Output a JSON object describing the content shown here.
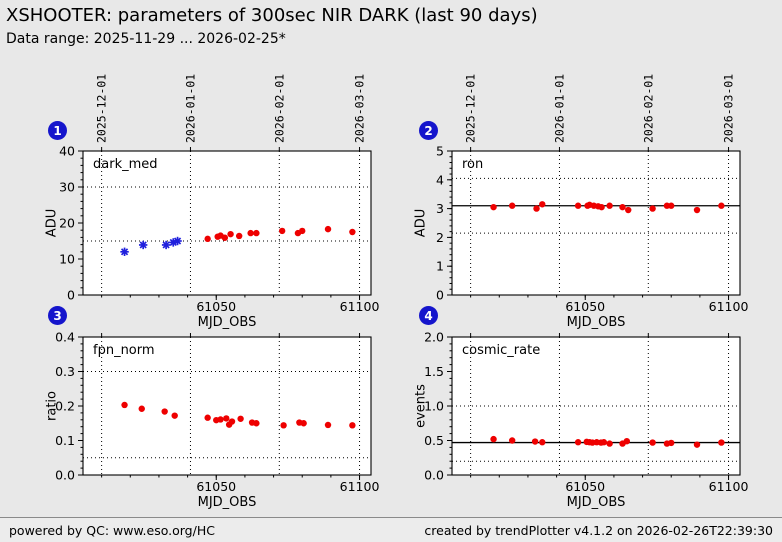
{
  "header": {
    "title": "XSHOOTER: parameters of 300sec NIR DARK (last 90 days)",
    "subtitle": "Data range: 2025-11-29 ... 2026-02-25*"
  },
  "footer": {
    "powered_by": "powered by QC: www.eso.org/HC",
    "created_by": "created by trendPlotter v4.1.2 on 2026-02-26T22:39:30"
  },
  "colors": {
    "page_bg": "#e8e8e8",
    "plot_bg": "#ffffff",
    "axis": "#000000",
    "red_marker": "#ee0000",
    "blue_marker": "#2020dd",
    "badge_bg": "#1515cc",
    "badge_fg": "#ffffff"
  },
  "x_axis": {
    "label": "MJD_OBS",
    "lim": [
      61003.5,
      61104
    ],
    "major_ticks": [
      61050,
      61100
    ],
    "major_labels": [
      "61050",
      "61100"
    ],
    "minor_step": 10,
    "date_ticks": [
      {
        "mjd": 61010,
        "label": "2025-12-01"
      },
      {
        "mjd": 61041,
        "label": "2026-01-01"
      },
      {
        "mjd": 61072,
        "label": "2026-02-01"
      },
      {
        "mjd": 61100,
        "label": "2026-03-01"
      }
    ]
  },
  "chart_data": [
    {
      "type": "scatter",
      "badge": "1",
      "label": "dark_med",
      "xlabel": "MJD_OBS",
      "ylabel": "ADU",
      "ylim": [
        0,
        40
      ],
      "ytick_vals": [
        0,
        10,
        20,
        30,
        40
      ],
      "ytick_labels": [
        "0",
        "10",
        "20",
        "30",
        "40"
      ],
      "yminor_step": 2,
      "thresholds": [
        15,
        30
      ],
      "mean_line": null,
      "show_date_labels": true,
      "series": [
        {
          "name": "historic",
          "marker": "asterisk",
          "color_key": "blue_marker",
          "x": [
            61018,
            61024.5,
            61032.5,
            61035,
            61036.5
          ],
          "y": [
            12.0,
            13.9,
            13.9,
            14.6,
            15.0
          ]
        },
        {
          "name": "current",
          "marker": "circle",
          "color_key": "red_marker",
          "x": [
            61047,
            61050.5,
            61051.5,
            61053,
            61055,
            61058,
            61062,
            61064,
            61073,
            61078.5,
            61080,
            61089,
            61097.5
          ],
          "y": [
            15.6,
            16.2,
            16.5,
            15.9,
            16.9,
            16.4,
            17.2,
            17.2,
            17.8,
            17.2,
            17.8,
            18.3,
            17.5
          ]
        }
      ]
    },
    {
      "type": "scatter",
      "badge": "2",
      "label": "ron",
      "xlabel": "MJD_OBS",
      "ylabel": "ADU",
      "ylim": [
        0,
        5
      ],
      "ytick_vals": [
        0,
        1,
        2,
        3,
        4,
        5
      ],
      "ytick_labels": [
        "0",
        "1",
        "2",
        "3",
        "4",
        "5"
      ],
      "yminor_step": 0.2,
      "thresholds": [
        2.15,
        4.05
      ],
      "mean_line": 3.1,
      "show_date_labels": true,
      "series": [
        {
          "name": "current",
          "marker": "circle",
          "color_key": "red_marker",
          "x": [
            61018,
            61024.5,
            61033,
            61035,
            61047.5,
            61050.8,
            61051.5,
            61053,
            61054.5,
            61055.7,
            61058.5,
            61063,
            61065,
            61073.5,
            61078.5,
            61080,
            61089,
            61097.5
          ],
          "y": [
            3.05,
            3.1,
            3.0,
            3.15,
            3.1,
            3.1,
            3.13,
            3.1,
            3.08,
            3.05,
            3.1,
            3.05,
            2.95,
            3.0,
            3.1,
            3.1,
            2.95,
            3.1
          ]
        }
      ]
    },
    {
      "type": "scatter",
      "badge": "3",
      "label": "fpn_norm",
      "xlabel": "MJD_OBS",
      "ylabel": "ratio",
      "ylim": [
        0,
        0.4
      ],
      "ytick_vals": [
        0,
        0.1,
        0.2,
        0.3,
        0.4
      ],
      "ytick_labels": [
        "0.0",
        "0.1",
        "0.2",
        "0.3",
        "0.4"
      ],
      "yminor_step": 0.02,
      "thresholds": [
        0.05,
        0.3
      ],
      "mean_line": null,
      "show_date_labels": false,
      "series": [
        {
          "name": "current",
          "marker": "circle",
          "color_key": "red_marker",
          "x": [
            61018,
            61024,
            61032,
            61035.5,
            61047,
            61050,
            61051.5,
            61053.5,
            61054.5,
            61055.5,
            61058.5,
            61062.5,
            61064,
            61073.5,
            61079,
            61080.5,
            61089,
            61097.5
          ],
          "y": [
            0.203,
            0.192,
            0.184,
            0.172,
            0.166,
            0.159,
            0.161,
            0.164,
            0.146,
            0.155,
            0.163,
            0.152,
            0.15,
            0.144,
            0.152,
            0.15,
            0.145,
            0.144
          ]
        }
      ]
    },
    {
      "type": "scatter",
      "badge": "4",
      "label": "cosmic_rate",
      "xlabel": "MJD_OBS",
      "ylabel": "events",
      "ylim": [
        0,
        2
      ],
      "ytick_vals": [
        0,
        0.5,
        1.0,
        1.5,
        2.0
      ],
      "ytick_labels": [
        "0.0",
        "0.5",
        "1.0",
        "1.5",
        "2.0"
      ],
      "yminor_step": 0.1,
      "thresholds": [
        0.2,
        1.0
      ],
      "mean_line": 0.47,
      "show_date_labels": false,
      "series": [
        {
          "name": "current",
          "marker": "circle",
          "color_key": "red_marker",
          "x": [
            61018,
            61024.5,
            61032.5,
            61035,
            61047.5,
            61050.5,
            61051.5,
            61052.5,
            61054,
            61055.5,
            61056.5,
            61058.5,
            61063,
            61064.5,
            61073.5,
            61078.5,
            61080,
            61089,
            61097.5
          ],
          "y": [
            0.52,
            0.5,
            0.485,
            0.475,
            0.475,
            0.48,
            0.475,
            0.47,
            0.475,
            0.47,
            0.475,
            0.455,
            0.455,
            0.49,
            0.47,
            0.455,
            0.465,
            0.44,
            0.47
          ]
        }
      ]
    }
  ]
}
